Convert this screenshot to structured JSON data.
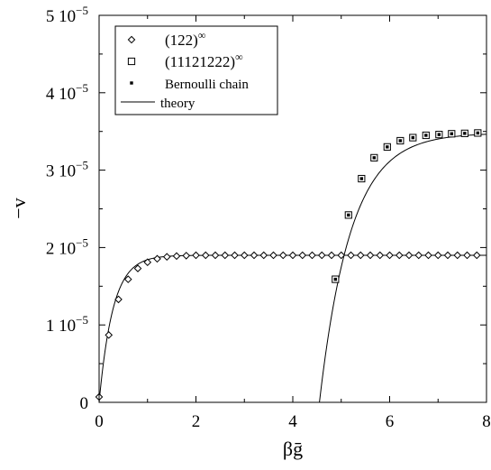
{
  "chart_data": {
    "type": "scatter",
    "title": "",
    "xlabel": "βḡ",
    "ylabel": "−v",
    "xlim": [
      0,
      8
    ],
    "ylim": [
      0,
      5e-05
    ],
    "grid": false,
    "legend_position": "top-left",
    "x_ticks": [
      {
        "value": 0,
        "label": "0"
      },
      {
        "value": 2,
        "label": "2"
      },
      {
        "value": 4,
        "label": "4"
      },
      {
        "value": 6,
        "label": "6"
      },
      {
        "value": 8,
        "label": "8"
      }
    ],
    "y_ticks": [
      {
        "value": 0,
        "label": "0",
        "exp": ""
      },
      {
        "value": 1e-05,
        "label": "1 10",
        "exp": "−5"
      },
      {
        "value": 2e-05,
        "label": "2 10",
        "exp": "−5"
      },
      {
        "value": 3e-05,
        "label": "3 10",
        "exp": "−5"
      },
      {
        "value": 4e-05,
        "label": "4 10",
        "exp": "−5"
      },
      {
        "value": 5e-05,
        "label": "5 10",
        "exp": "−5"
      }
    ],
    "legend": [
      {
        "label": "(122)",
        "sup": "∞",
        "marker": "diamond"
      },
      {
        "label": "(11121222)",
        "sup": "∞",
        "marker": "square"
      },
      {
        "label": "Bernoulli chain",
        "sup": "",
        "marker": "filled-square"
      },
      {
        "label": "theory",
        "sup": "",
        "marker": "line"
      }
    ],
    "series": [
      {
        "name": "(122)∞",
        "marker": "diamond",
        "x": [
          0,
          0.2,
          0.4,
          0.6,
          0.8,
          1.0,
          1.2,
          1.4,
          1.6,
          1.8,
          2.0,
          2.2,
          2.4,
          2.6,
          2.8,
          3.0,
          3.2,
          3.4,
          3.6,
          3.8,
          4.0,
          4.2,
          4.4,
          4.6,
          4.8,
          5.0,
          5.2,
          5.4,
          5.6,
          5.8,
          6.0,
          6.2,
          6.4,
          6.6,
          6.8,
          7.0,
          7.2,
          7.4,
          7.6,
          7.8
        ],
        "y": [
          7e-07,
          8.7e-06,
          1.33e-05,
          1.59e-05,
          1.73e-05,
          1.81e-05,
          1.855e-05,
          1.88e-05,
          1.89e-05,
          1.895e-05,
          1.9e-05,
          1.9e-05,
          1.9e-05,
          1.9e-05,
          1.9e-05,
          1.9e-05,
          1.9e-05,
          1.9e-05,
          1.9e-05,
          1.9e-05,
          1.9e-05,
          1.9e-05,
          1.9e-05,
          1.9e-05,
          1.9e-05,
          1.9e-05,
          1.9e-05,
          1.9e-05,
          1.9e-05,
          1.9e-05,
          1.9e-05,
          1.9e-05,
          1.9e-05,
          1.9e-05,
          1.9e-05,
          1.9e-05,
          1.9e-05,
          1.9e-05,
          1.9e-05,
          1.9e-05
        ]
      },
      {
        "name": "(11121222)∞",
        "marker": "square",
        "x": [
          4.88,
          5.15,
          5.42,
          5.68,
          5.95,
          6.22,
          6.48,
          6.75,
          7.02,
          7.28,
          7.55,
          7.82
        ],
        "y": [
          1.59e-05,
          2.42e-05,
          2.89e-05,
          3.16e-05,
          3.3e-05,
          3.38e-05,
          3.42e-05,
          3.45e-05,
          3.46e-05,
          3.47e-05,
          3.475e-05,
          3.48e-05
        ]
      },
      {
        "name": "Bernoulli chain",
        "marker": "filled-square",
        "x": [
          4.88,
          5.15,
          5.42,
          5.68,
          5.95,
          6.22,
          6.48,
          6.75,
          7.02,
          7.28,
          7.55,
          7.82
        ],
        "y": [
          1.59e-05,
          2.42e-05,
          2.89e-05,
          3.16e-05,
          3.3e-05,
          3.38e-05,
          3.42e-05,
          3.45e-05,
          3.46e-05,
          3.47e-05,
          3.475e-05,
          3.48e-05
        ]
      }
    ],
    "theory_curves": [
      {
        "name": "theory",
        "plateau": 1.9e-05,
        "x0": 0,
        "rate": 3.5
      },
      {
        "name": "theory",
        "plateau": 3.48e-05,
        "x0": 4.55,
        "rate": 1.55
      }
    ]
  }
}
